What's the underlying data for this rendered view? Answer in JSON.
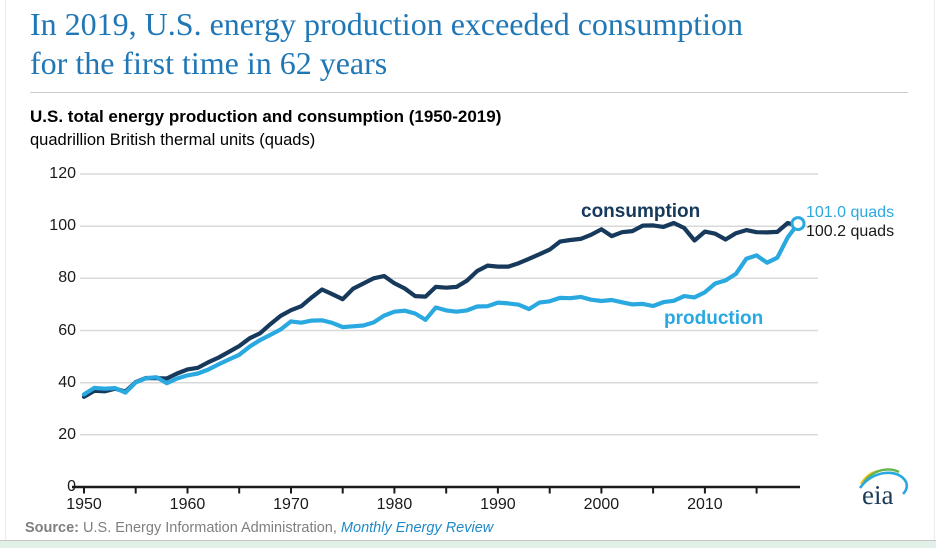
{
  "page": {
    "title": "In 2019, U.S. energy production exceeded consumption\nfor the first time in 62 years",
    "title_color": "#2077b6",
    "source": {
      "label": "Source:",
      "text": " U.S. Energy Information Administration, ",
      "link": "Monthly Energy Review"
    },
    "logo_text": "eia"
  },
  "chart": {
    "heading": "U.S. total energy production and consumption (1950-2019)",
    "units": "quadrillion British thermal units (quads)"
  },
  "chart_data": {
    "type": "line",
    "title": "U.S. total energy production and consumption (1950-2019)",
    "ylabel": "quadrillion British thermal units (quads)",
    "ylim": [
      0,
      120
    ],
    "yticks": [
      0,
      20,
      40,
      60,
      80,
      100,
      120
    ],
    "xticks": [
      1950,
      1960,
      1970,
      1980,
      1990,
      2000,
      2010
    ],
    "xtick_minor_step": 5,
    "grid": "horizontal",
    "legend_position": "inline-labels",
    "colors": {
      "gridline": "#d9d9d9",
      "axis": "#1a1a1a"
    },
    "x": [
      1950,
      1951,
      1952,
      1953,
      1954,
      1955,
      1956,
      1957,
      1958,
      1959,
      1960,
      1961,
      1962,
      1963,
      1964,
      1965,
      1966,
      1967,
      1968,
      1969,
      1970,
      1971,
      1972,
      1973,
      1974,
      1975,
      1976,
      1977,
      1978,
      1979,
      1980,
      1981,
      1982,
      1983,
      1984,
      1985,
      1986,
      1987,
      1988,
      1989,
      1990,
      1991,
      1992,
      1993,
      1994,
      1995,
      1996,
      1997,
      1998,
      1999,
      2000,
      2001,
      2002,
      2003,
      2004,
      2005,
      2006,
      2007,
      2008,
      2009,
      2010,
      2011,
      2012,
      2013,
      2014,
      2015,
      2016,
      2017,
      2018,
      2019
    ],
    "series": [
      {
        "name": "consumption",
        "color": "#16395c",
        "end_label": "100.2 quads",
        "end_marker": false,
        "values": [
          34.6,
          36.9,
          36.7,
          37.7,
          36.6,
          40.2,
          41.8,
          41.7,
          41.6,
          43.5,
          45.1,
          45.7,
          47.8,
          49.6,
          51.8,
          54.0,
          57.0,
          58.9,
          62.4,
          65.6,
          67.8,
          69.3,
          72.7,
          75.7,
          73.9,
          72.0,
          76.0,
          78.0,
          80.0,
          80.9,
          78.1,
          76.1,
          73.2,
          73.0,
          76.7,
          76.4,
          76.7,
          79.1,
          82.8,
          84.9,
          84.5,
          84.5,
          85.8,
          87.5,
          89.2,
          91.0,
          94.1,
          94.7,
          95.1,
          96.7,
          98.8,
          96.2,
          97.7,
          98.1,
          100.2,
          100.3,
          99.7,
          101.2,
          99.3,
          94.5,
          97.9,
          97.1,
          94.9,
          97.3,
          98.5,
          97.7,
          97.6,
          97.8,
          101.2,
          100.2
        ]
      },
      {
        "name": "production",
        "color": "#2aa8e0",
        "end_label": "101.0 quads",
        "end_marker": true,
        "values": [
          35.5,
          38.0,
          37.7,
          37.9,
          36.2,
          40.1,
          41.7,
          42.1,
          39.8,
          41.6,
          42.8,
          43.5,
          45.0,
          47.0,
          48.9,
          50.7,
          53.8,
          56.3,
          58.3,
          60.4,
          63.5,
          63.0,
          63.8,
          63.9,
          62.9,
          61.3,
          61.6,
          61.9,
          63.1,
          65.7,
          67.2,
          67.6,
          66.5,
          64.1,
          68.8,
          67.7,
          67.2,
          67.7,
          69.2,
          69.3,
          70.7,
          70.4,
          69.9,
          68.2,
          70.7,
          71.2,
          72.5,
          72.4,
          72.9,
          71.8,
          71.3,
          71.7,
          70.8,
          70.0,
          70.2,
          69.4,
          70.9,
          71.4,
          73.2,
          72.7,
          74.7,
          78.0,
          79.2,
          81.7,
          87.5,
          88.8,
          86.0,
          87.9,
          95.7,
          101.0
        ]
      }
    ]
  }
}
